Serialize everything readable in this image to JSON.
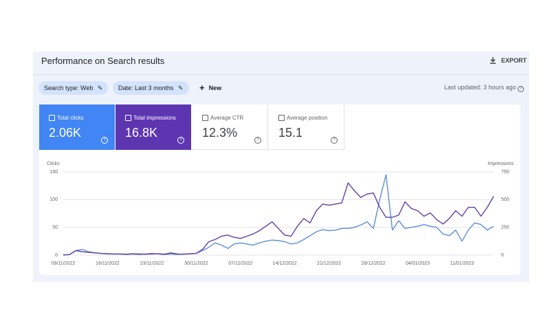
{
  "header": {
    "title": "Performance on Search results",
    "export": "EXPORT"
  },
  "filters": [
    "Search type: Web",
    "Date: Last 3 months"
  ],
  "new_button": "New",
  "last_updated": "Last updated: 3 hours ago",
  "metrics": [
    {
      "label": "Total clicks",
      "value": "2.06K"
    },
    {
      "label": "Total impressions",
      "value": "16.8K"
    },
    {
      "label": "Average CTR",
      "value": "12.3%"
    },
    {
      "label": "Average position",
      "value": "15.1"
    }
  ],
  "chart_data": {
    "type": "line",
    "categories": [
      "09/11/2022",
      null,
      null,
      null,
      null,
      null,
      null,
      "16/11/2022",
      null,
      null,
      null,
      null,
      null,
      null,
      "23/11/2022",
      null,
      null,
      null,
      null,
      null,
      null,
      "30/11/2022",
      null,
      null,
      null,
      null,
      null,
      null,
      "07/12/2022",
      null,
      null,
      null,
      null,
      null,
      null,
      "14/12/2022",
      null,
      null,
      null,
      null,
      null,
      null,
      "21/12/2022",
      null,
      null,
      null,
      null,
      null,
      null,
      "28/12/2022",
      null,
      null,
      null,
      null,
      null,
      null,
      "04/01/2023",
      null,
      null,
      null,
      null,
      null,
      null,
      "11/01/2023",
      null,
      null,
      null,
      null,
      null
    ],
    "series": [
      {
        "name": "Clicks",
        "color": "#5b8fd6",
        "values": [
          0,
          1,
          8,
          10,
          6,
          4,
          3,
          2,
          2,
          2,
          1,
          2,
          1,
          2,
          3,
          2,
          1,
          2,
          1,
          2,
          2,
          3,
          8,
          14,
          22,
          18,
          12,
          20,
          22,
          20,
          18,
          22,
          25,
          27,
          26,
          24,
          20,
          22,
          28,
          35,
          42,
          46,
          44,
          45,
          48,
          48,
          50,
          54,
          60,
          48,
          100,
          145,
          45,
          62,
          48,
          50,
          52,
          55,
          52,
          50,
          38,
          35,
          45,
          25,
          45,
          58,
          55,
          45,
          52
        ]
      },
      {
        "name": "Impressions",
        "color": "#5e3fa0",
        "axis": "y2",
        "values": [
          0,
          5,
          40,
          30,
          25,
          20,
          15,
          12,
          10,
          10,
          8,
          12,
          10,
          8,
          10,
          12,
          8,
          20,
          10,
          8,
          12,
          15,
          50,
          120,
          140,
          170,
          180,
          160,
          150,
          170,
          190,
          220,
          260,
          300,
          240,
          180,
          170,
          260,
          330,
          290,
          400,
          460,
          450,
          460,
          470,
          650,
          580,
          520,
          550,
          560,
          430,
          340,
          340,
          360,
          480,
          420,
          400,
          350,
          380,
          320,
          280,
          330,
          400,
          350,
          430,
          430,
          350,
          430,
          530
        ]
      }
    ],
    "ylim": [
      0,
      150
    ],
    "yticks": [
      0,
      50,
      100,
      150
    ],
    "y2lim": [
      0,
      750
    ],
    "y2ticks": [
      0,
      250,
      500,
      750
    ],
    "grid": true
  }
}
